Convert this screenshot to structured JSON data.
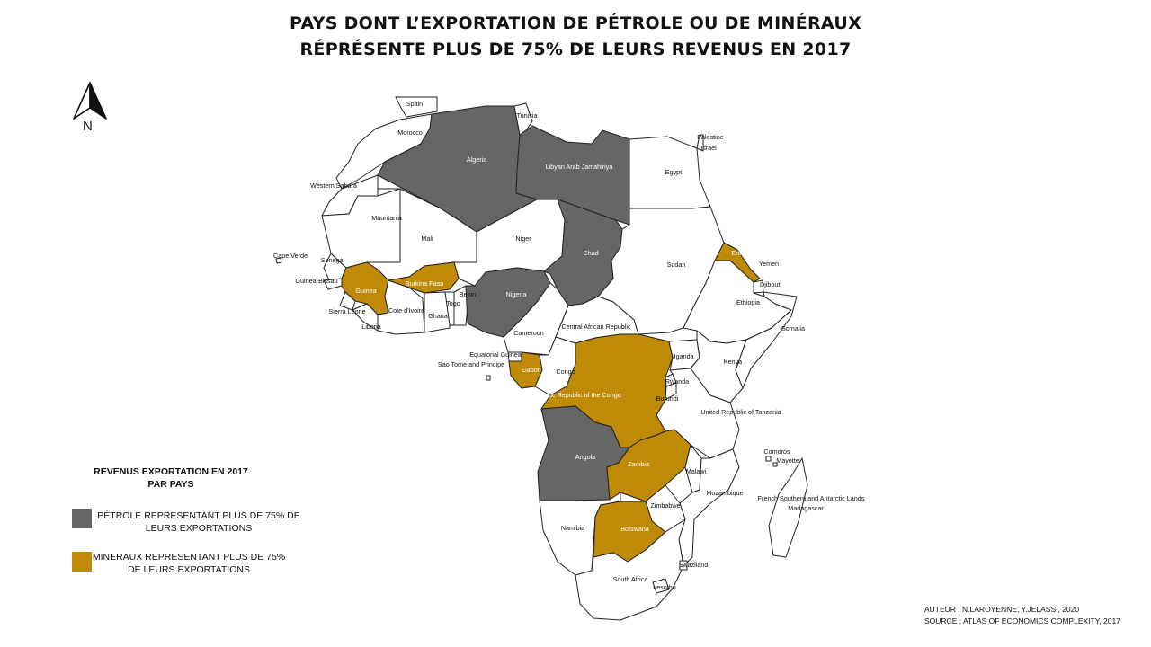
{
  "title": {
    "line1": "PAYS DONT L’EXPORTATION DE PÉTROLE OU DE MINÉRAUX",
    "line2": "RÉPRÉSENTE PLUS DE 75% DE LEURS REVENUS EN 2017"
  },
  "north_arrow": {
    "label": "N"
  },
  "colors": {
    "petrole": "#666666",
    "mineraux": "#bf8a06",
    "other": "#ffffff",
    "border": "#222222"
  },
  "legend": {
    "title_line1": "REVENUS EXPORTATION EN 2017",
    "title_line2": "PAR PAYS",
    "items": [
      {
        "category": "petrole",
        "line1": "PÉTROLE REPRESENTANT PLUS DE 75% DE",
        "line2": "LEURS EXPORTATIONS"
      },
      {
        "category": "mineraux",
        "line1": "MINERAUX REPRESENTANT PLUS DE 75%",
        "line2": "DE LEURS EXPORTATIONS"
      }
    ]
  },
  "credits": {
    "author": "AUTEUR : N.LAROYENNE, Y.JELASSI, 2020",
    "source": "SOURCE : ATLAS OF ECONOMICS COMPLEXITY, 2017"
  },
  "countries": {
    "spain": {
      "name": "Spain",
      "category": "none"
    },
    "morocco": {
      "name": "Morocco",
      "category": "none"
    },
    "western_sahara": {
      "name": "Western Sahara",
      "category": "none"
    },
    "algeria": {
      "name": "Algeria",
      "category": "petrole"
    },
    "tunisia": {
      "name": "Tunisia",
      "category": "none"
    },
    "libya": {
      "name": "Libyan Arab Jamahiriya",
      "category": "petrole"
    },
    "egypt": {
      "name": "Egypt",
      "category": "none"
    },
    "palestine": {
      "name": "Palestine",
      "category": "none"
    },
    "israel": {
      "name": "Israel",
      "category": "none"
    },
    "mauritania": {
      "name": "Mauritania",
      "category": "none"
    },
    "mali": {
      "name": "Mali",
      "category": "none"
    },
    "niger": {
      "name": "Niger",
      "category": "none"
    },
    "chad": {
      "name": "Chad",
      "category": "petrole"
    },
    "sudan": {
      "name": "Sudan",
      "category": "none"
    },
    "eritrea": {
      "name": "Eritrea",
      "category": "mineraux"
    },
    "yemen": {
      "name": "Yemen",
      "category": "none"
    },
    "djibouti": {
      "name": "Djibouti",
      "category": "none"
    },
    "ethiopia": {
      "name": "Ethiopia",
      "category": "none"
    },
    "somalia": {
      "name": "Somalia",
      "category": "none"
    },
    "cape_verde": {
      "name": "Cape Verde",
      "category": "none"
    },
    "senegal": {
      "name": "Senegal",
      "category": "none"
    },
    "guinea_bissau": {
      "name": "Guinea-Bissau",
      "category": "none"
    },
    "guinea": {
      "name": "Guinea",
      "category": "mineraux"
    },
    "sierra_leone": {
      "name": "Sierra Leone",
      "category": "none"
    },
    "liberia": {
      "name": "Liberia",
      "category": "none"
    },
    "cote_divoire": {
      "name": "Cote d'Ivoire",
      "category": "none"
    },
    "burkina_faso": {
      "name": "Burkina Faso",
      "category": "mineraux"
    },
    "ghana": {
      "name": "Ghana",
      "category": "none"
    },
    "togo": {
      "name": "Togo",
      "category": "none"
    },
    "benin": {
      "name": "Benin",
      "category": "none"
    },
    "nigeria": {
      "name": "Nigeria",
      "category": "petrole"
    },
    "cameroon": {
      "name": "Cameroon",
      "category": "none"
    },
    "car": {
      "name": "Central African Republic",
      "category": "none"
    },
    "equatorial_guinea": {
      "name": "Equatorial Guinea",
      "category": "none"
    },
    "sao_tome": {
      "name": "Sao Tome and Principe",
      "category": "none"
    },
    "gabon": {
      "name": "Gabon",
      "category": "mineraux"
    },
    "congo": {
      "name": "Congo",
      "category": "none"
    },
    "drc": {
      "name": "Democratic Republic of the Congo",
      "category": "mineraux"
    },
    "uganda": {
      "name": "Uganda",
      "category": "none"
    },
    "kenya": {
      "name": "Kenya",
      "category": "none"
    },
    "rwanda": {
      "name": "Rwanda",
      "category": "none"
    },
    "burundi": {
      "name": "Burundi",
      "category": "none"
    },
    "tanzania": {
      "name": "United Republic of Tanzania",
      "category": "none"
    },
    "angola": {
      "name": "Angola",
      "category": "petrole"
    },
    "zambia": {
      "name": "Zambia",
      "category": "mineraux"
    },
    "malawi": {
      "name": "Malawi",
      "category": "none"
    },
    "mozambique": {
      "name": "Mozambique",
      "category": "none"
    },
    "zimbabwe": {
      "name": "Zimbabwe",
      "category": "none"
    },
    "namibia": {
      "name": "Namibia",
      "category": "none"
    },
    "botswana": {
      "name": "Botswana",
      "category": "mineraux"
    },
    "south_africa": {
      "name": "South Africa",
      "category": "none"
    },
    "swaziland": {
      "name": "Swaziland",
      "category": "none"
    },
    "lesotho": {
      "name": "Lesotho",
      "category": "none"
    },
    "comoros": {
      "name": "Comoros",
      "category": "none"
    },
    "mayotte": {
      "name": "Mayotte",
      "category": "none"
    },
    "madagascar": {
      "name": "Madagascar",
      "category": "none"
    },
    "french_southern": {
      "name": "French Southern and Antarctic Lands",
      "category": "none"
    }
  }
}
